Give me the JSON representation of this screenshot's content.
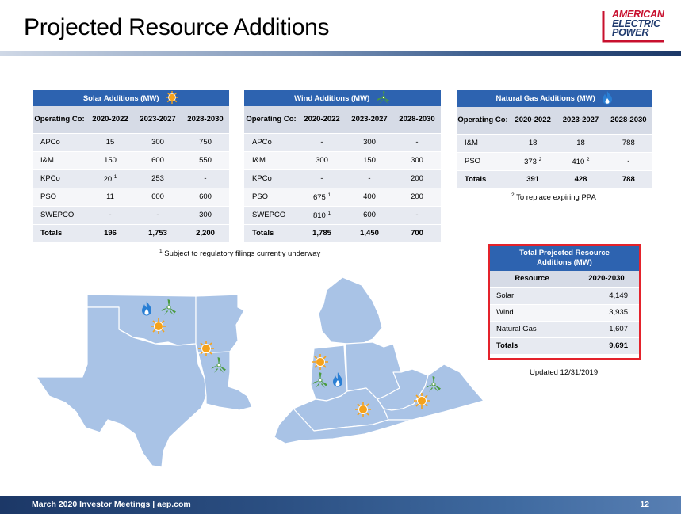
{
  "page": {
    "title": "Projected Resource Additions",
    "logo": [
      "AMERICAN",
      "ELECTRIC",
      "POWER"
    ]
  },
  "solar": {
    "caption": "Solar Additions (MW)",
    "icon": "sun-icon",
    "headers": [
      "Operating Co:",
      "2020-2022",
      "2023-2027",
      "2028-2030"
    ],
    "rows": [
      [
        "APCo",
        "15",
        "300",
        "750"
      ],
      [
        "I&M",
        "150",
        "600",
        "550"
      ],
      [
        "KPCo",
        "20",
        "253",
        "-"
      ],
      [
        "PSO",
        "11",
        "600",
        "600"
      ],
      [
        "SWEPCO",
        "-",
        "-",
        "300"
      ]
    ],
    "sup_kpco": "1",
    "totals": [
      "Totals",
      "196",
      "1,753",
      "2,200"
    ]
  },
  "wind": {
    "caption": "Wind Additions (MW)",
    "icon": "wind-turbine-icon",
    "headers": [
      "Operating Co:",
      "2020-2022",
      "2023-2027",
      "2028-2030"
    ],
    "rows": [
      [
        "APCo",
        "-",
        "300",
        "-"
      ],
      [
        "I&M",
        "300",
        "150",
        "300"
      ],
      [
        "KPCo",
        "-",
        "-",
        "200"
      ],
      [
        "PSO",
        "675",
        "400",
        "200"
      ],
      [
        "SWEPCO",
        "810",
        "600",
        "-"
      ]
    ],
    "sup_pso": "1",
    "sup_swepco": "1",
    "totals": [
      "Totals",
      "1,785",
      "1,450",
      "700"
    ]
  },
  "gas": {
    "caption": "Natural Gas Additions (MW)",
    "icon": "flame-icon",
    "headers": [
      "Operating Co:",
      "2020-2022",
      "2023-2027",
      "2028-2030"
    ],
    "rows": [
      [
        "I&M",
        "18",
        "18",
        "788"
      ],
      [
        "PSO",
        "373",
        "410",
        "-"
      ]
    ],
    "sup_pso_a": "2",
    "sup_pso_b": "2",
    "totals": [
      "Totals",
      "391",
      "428",
      "788"
    ]
  },
  "notes": {
    "ppa_sup": "2",
    "ppa": "To replace expiring PPA",
    "regulatory_sup": "1",
    "regulatory": "Subject to regulatory filings currently underway",
    "updated": "Updated 12/31/2019"
  },
  "total": {
    "caption": "Total Projected Resource Additions (MW)",
    "headers": [
      "Resource",
      "2020-2030"
    ],
    "rows": [
      [
        "Solar",
        "4,149"
      ],
      [
        "Wind",
        "3,935"
      ],
      [
        "Natural Gas",
        "1,607"
      ]
    ],
    "totals": [
      "Totals",
      "9,691"
    ]
  },
  "colors": {
    "header_blue": "#2d63b0",
    "map_fill": "#a9c3e6",
    "highlight_red": "#e4222b",
    "sun": "#f5a21b",
    "wind": "#4a9b3f",
    "gas": "#2a7fd4"
  },
  "footer": {
    "text": "March 2020 Investor Meetings  |  aep.com",
    "page": "12"
  }
}
